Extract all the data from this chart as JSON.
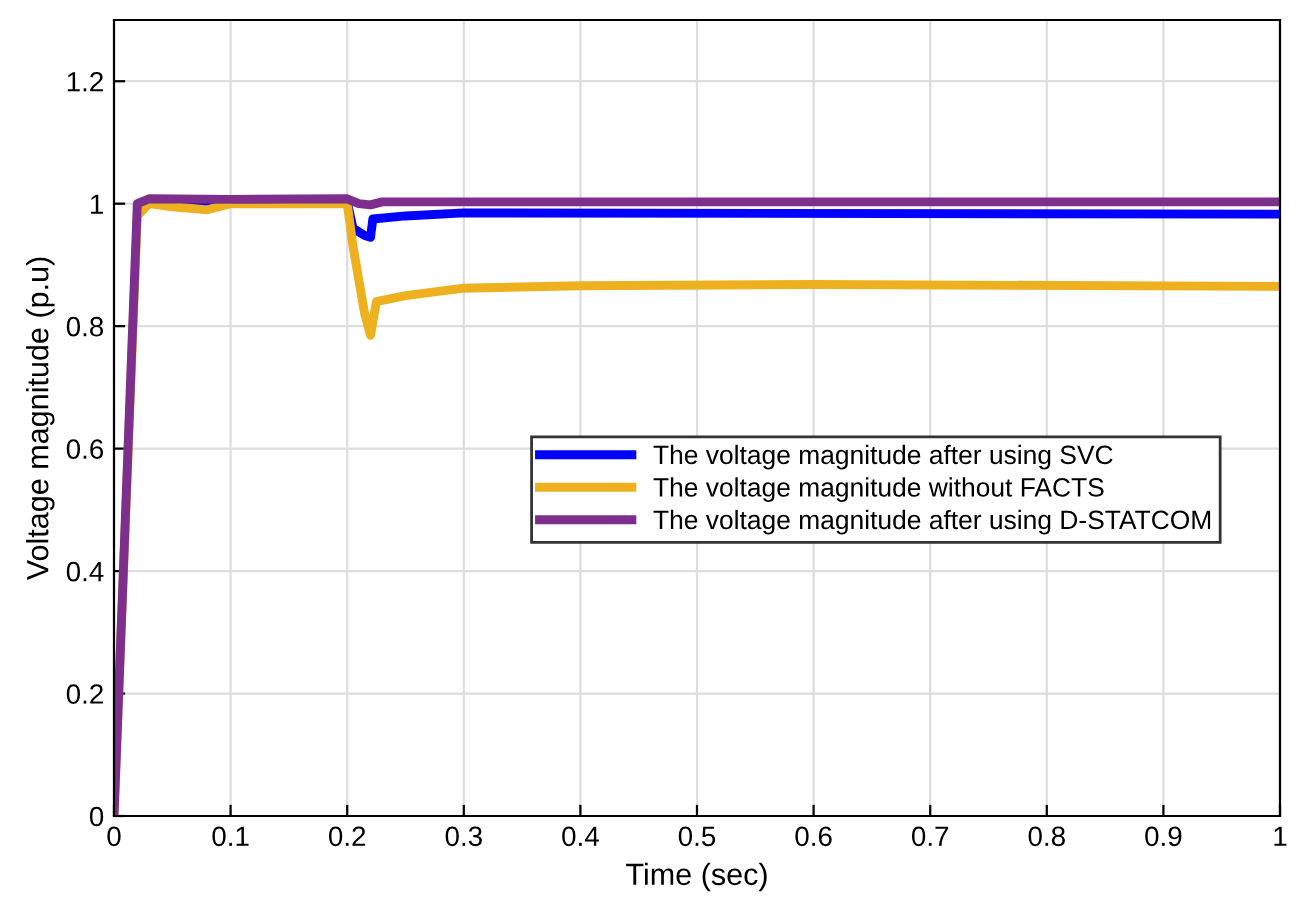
{
  "chart_data": {
    "type": "line",
    "xlabel": "Time (sec)",
    "ylabel": "Voltage magnitude (p.u)",
    "xlim": [
      0,
      1
    ],
    "ylim": [
      0,
      1.3
    ],
    "xticks": [
      0,
      0.1,
      0.2,
      0.3,
      0.4,
      0.5,
      0.6,
      0.7,
      0.8,
      0.9,
      1
    ],
    "yticks": [
      0,
      0.2,
      0.4,
      0.6,
      0.8,
      1,
      1.2
    ],
    "grid": true,
    "legend": "right",
    "marker": "none",
    "line_style": "solid",
    "series": [
      {
        "name": "The voltage magnitude after using SVC",
        "color": "#0000ff",
        "x": [
          0.03,
          0.1,
          0.2,
          0.205,
          0.215,
          0.22,
          0.222,
          0.25,
          0.3,
          1
        ],
        "values": [
          1.005,
          1.003,
          1.003,
          0.96,
          0.948,
          0.945,
          0.975,
          0.98,
          0.985,
          0.983
        ]
      },
      {
        "name": "The voltage magnitude without FACTS",
        "color": "#edb120",
        "x": [
          0,
          0.02,
          0.03,
          0.05,
          0.08,
          0.1,
          0.2,
          0.205,
          0.215,
          0.22,
          0.225,
          0.25,
          0.3,
          0.4,
          0.6,
          1
        ],
        "values": [
          0,
          0.98,
          1.0,
          0.995,
          0.99,
          1.0,
          1.0,
          0.93,
          0.82,
          0.785,
          0.84,
          0.85,
          0.862,
          0.866,
          0.868,
          0.865
        ]
      },
      {
        "name": "The voltage magnitude after using D-STATCOM",
        "color": "#7e2f8e",
        "x": [
          0,
          0.02,
          0.03,
          0.1,
          0.2,
          0.21,
          0.22,
          0.23,
          1
        ],
        "values": [
          0,
          1.0,
          1.008,
          1.007,
          1.008,
          1.0,
          0.998,
          1.003,
          1.003
        ]
      }
    ]
  }
}
